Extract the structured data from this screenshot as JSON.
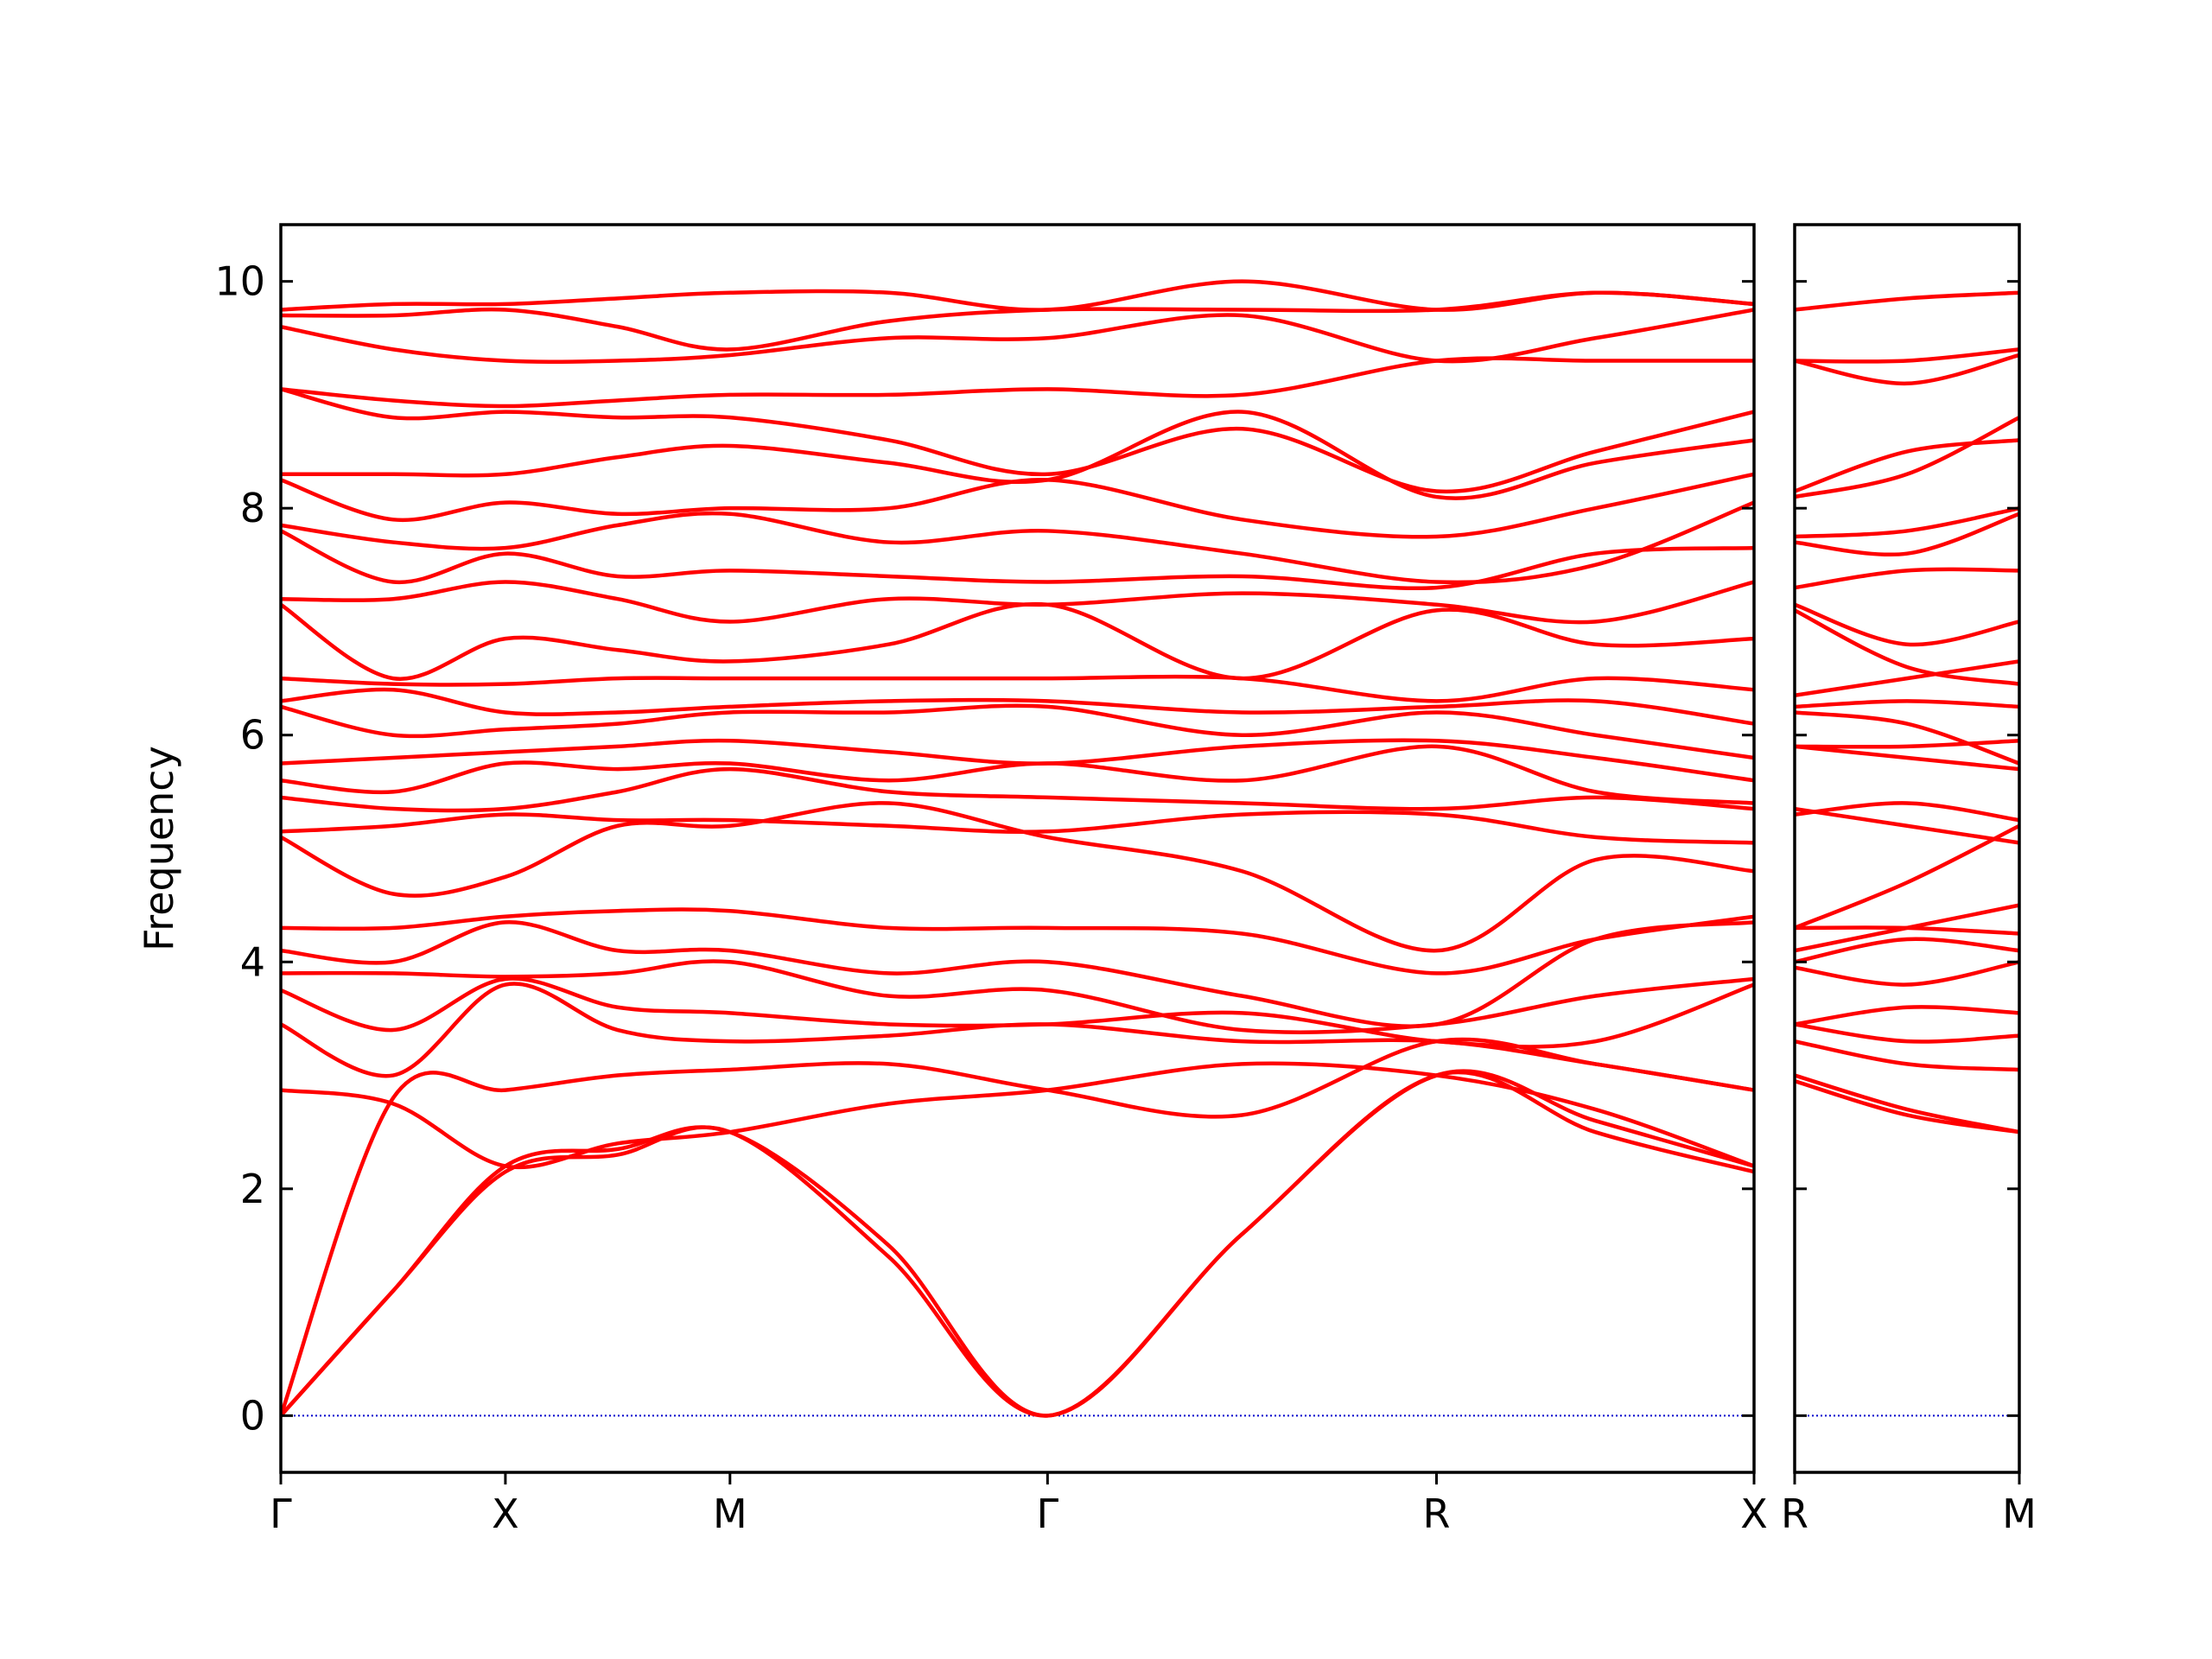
{
  "chart_data": [
    {
      "type": "line",
      "ylabel": "Frequency",
      "color": "#ff0000",
      "zero_line": true,
      "zero_line_color": "#0000cc",
      "x": [
        0,
        0.5,
        1,
        1.5,
        2,
        2.707,
        3.414,
        4.28,
        5.146,
        5.853,
        6.56
      ],
      "xlim": [
        0,
        6.56
      ],
      "xticks": [
        {
          "value": 0,
          "label": "Γ"
        },
        {
          "value": 1,
          "label": "X"
        },
        {
          "value": 2,
          "label": "M"
        },
        {
          "value": 3.414,
          "label": "Γ"
        },
        {
          "value": 5.146,
          "label": "R"
        },
        {
          "value": 6.56,
          "label": "X"
        }
      ],
      "ylim": [
        -0.5,
        10.5
      ],
      "yticks": [
        0,
        2,
        4,
        6,
        8,
        10
      ],
      "series": [
        {
          "values": [
            0,
            1.1,
            2.15,
            2.3,
            2.5,
            1.4,
            0,
            1.6,
            3.0,
            2.5,
            2.15
          ]
        },
        {
          "values": [
            0,
            1.1,
            2.2,
            2.35,
            2.5,
            1.5,
            0,
            1.6,
            3.0,
            2.6,
            2.2
          ]
        },
        {
          "values": [
            0,
            2.8,
            2.87,
            3.0,
            3.05,
            3.1,
            2.87,
            2.65,
            3.3,
            3.1,
            2.87
          ]
        },
        {
          "values": [
            2.87,
            2.75,
            2.2,
            2.4,
            2.5,
            2.75,
            2.87,
            3.1,
            3.0,
            2.7,
            2.2
          ]
        },
        {
          "values": [
            3.45,
            3.0,
            3.8,
            3.4,
            3.3,
            3.35,
            3.45,
            3.3,
            3.3,
            3.1,
            2.87
          ]
        },
        {
          "values": [
            3.75,
            3.4,
            3.85,
            3.6,
            3.55,
            3.45,
            3.45,
            3.55,
            3.3,
            3.3,
            3.8
          ]
        },
        {
          "values": [
            3.9,
            3.9,
            3.87,
            3.9,
            4.0,
            3.7,
            3.75,
            3.4,
            3.45,
            3.7,
            3.85
          ]
        },
        {
          "values": [
            4.1,
            4.0,
            4.35,
            4.1,
            4.1,
            3.9,
            4.0,
            3.7,
            3.45,
            4.2,
            4.35
          ]
        },
        {
          "values": [
            4.3,
            4.3,
            4.4,
            4.45,
            4.45,
            4.3,
            4.3,
            4.25,
            3.9,
            4.2,
            4.4
          ]
        },
        {
          "values": [
            5.1,
            4.6,
            4.75,
            5.2,
            5.2,
            5.4,
            5.1,
            4.8,
            4.1,
            4.9,
            4.8
          ]
        },
        {
          "values": [
            5.15,
            5.2,
            5.3,
            5.25,
            5.25,
            5.2,
            5.15,
            5.3,
            5.3,
            5.1,
            5.05
          ]
        },
        {
          "values": [
            5.45,
            5.35,
            5.35,
            5.5,
            5.7,
            5.5,
            5.45,
            5.4,
            5.35,
            5.45,
            5.35
          ]
        },
        {
          "values": [
            5.6,
            5.5,
            5.75,
            5.7,
            5.75,
            5.6,
            5.75,
            5.6,
            5.9,
            5.5,
            5.4
          ]
        },
        {
          "values": [
            5.75,
            5.8,
            5.85,
            5.9,
            5.95,
            5.85,
            5.75,
            5.9,
            5.95,
            5.8,
            5.6
          ]
        },
        {
          "values": [
            6.25,
            6.0,
            6.05,
            6.1,
            6.2,
            6.2,
            6.25,
            6.0,
            6.2,
            6.0,
            5.8
          ]
        },
        {
          "values": [
            6.3,
            6.4,
            6.2,
            6.2,
            6.25,
            6.3,
            6.3,
            6.2,
            6.25,
            6.3,
            6.1
          ]
        },
        {
          "values": [
            6.5,
            6.45,
            6.45,
            6.5,
            6.5,
            6.5,
            6.5,
            6.5,
            6.3,
            6.5,
            6.4
          ]
        },
        {
          "values": [
            7.15,
            6.5,
            6.85,
            6.75,
            6.65,
            6.8,
            7.15,
            6.5,
            7.1,
            6.8,
            6.85
          ]
        },
        {
          "values": [
            7.2,
            7.2,
            7.35,
            7.2,
            7.0,
            7.2,
            7.15,
            7.25,
            7.15,
            7.0,
            7.35
          ]
        },
        {
          "values": [
            7.8,
            7.35,
            7.6,
            7.4,
            7.45,
            7.4,
            7.35,
            7.4,
            7.3,
            7.6,
            7.65
          ]
        },
        {
          "values": [
            7.85,
            7.7,
            7.65,
            7.85,
            7.95,
            7.7,
            7.8,
            7.6,
            7.35,
            7.5,
            8.05
          ]
        },
        {
          "values": [
            8.25,
            7.9,
            8.05,
            7.95,
            8.0,
            8.0,
            8.25,
            7.9,
            7.75,
            8.0,
            8.3
          ]
        },
        {
          "values": [
            8.3,
            8.3,
            8.3,
            8.45,
            8.55,
            8.4,
            8.25,
            8.85,
            8.1,
            8.4,
            8.6
          ]
        },
        {
          "values": [
            9.05,
            8.8,
            8.85,
            8.8,
            8.8,
            8.6,
            8.3,
            8.7,
            8.15,
            8.5,
            8.85
          ]
        },
        {
          "values": [
            9.05,
            8.95,
            8.9,
            8.95,
            9.0,
            9.0,
            9.05,
            9.0,
            9.3,
            9.3,
            9.3
          ]
        },
        {
          "values": [
            9.6,
            9.4,
            9.3,
            9.3,
            9.35,
            9.5,
            9.5,
            9.7,
            9.3,
            9.5,
            9.75
          ]
        },
        {
          "values": [
            9.7,
            9.7,
            9.75,
            9.6,
            9.4,
            9.65,
            9.75,
            9.75,
            9.75,
            9.9,
            9.8
          ]
        },
        {
          "values": [
            9.75,
            9.8,
            9.8,
            9.85,
            9.9,
            9.9,
            9.75,
            10.0,
            9.75,
            9.9,
            9.8
          ]
        }
      ]
    },
    {
      "type": "line",
      "color": "#ff0000",
      "zero_line": true,
      "zero_line_color": "#0000cc",
      "x": [
        0,
        0.5,
        1
      ],
      "xlim": [
        0,
        1
      ],
      "xticks": [
        {
          "value": 0,
          "label": "R"
        },
        {
          "value": 1,
          "label": "M"
        }
      ],
      "ylim": [
        -0.5,
        10.5
      ],
      "yticks": [
        0,
        2,
        4,
        6,
        8,
        10
      ],
      "series": [
        {
          "values": [
            3.0,
            2.7,
            2.5
          ]
        },
        {
          "values": [
            2.95,
            2.65,
            2.5
          ]
        },
        {
          "values": [
            3.3,
            3.1,
            3.05
          ]
        },
        {
          "values": [
            3.45,
            3.3,
            3.35
          ]
        },
        {
          "values": [
            3.45,
            3.6,
            3.55
          ]
        },
        {
          "values": [
            3.95,
            3.8,
            4.0
          ]
        },
        {
          "values": [
            4.0,
            4.2,
            4.1
          ]
        },
        {
          "values": [
            4.3,
            4.3,
            4.25
          ]
        },
        {
          "values": [
            4.1,
            4.3,
            4.5
          ]
        },
        {
          "values": [
            5.3,
            5.4,
            5.25
          ]
        },
        {
          "values": [
            4.3,
            4.7,
            5.2
          ]
        },
        {
          "values": [
            5.35,
            5.2,
            5.05
          ]
        },
        {
          "values": [
            5.9,
            5.8,
            5.7
          ]
        },
        {
          "values": [
            5.9,
            5.9,
            5.95
          ]
        },
        {
          "values": [
            6.2,
            6.1,
            5.75
          ]
        },
        {
          "values": [
            6.25,
            6.3,
            6.25
          ]
        },
        {
          "values": [
            6.35,
            6.5,
            6.65
          ]
        },
        {
          "values": [
            7.1,
            6.6,
            6.45
          ]
        },
        {
          "values": [
            7.15,
            6.8,
            7.0
          ]
        },
        {
          "values": [
            7.3,
            7.45,
            7.45
          ]
        },
        {
          "values": [
            7.7,
            7.6,
            7.95
          ]
        },
        {
          "values": [
            7.75,
            7.8,
            8.0
          ]
        },
        {
          "values": [
            8.15,
            8.5,
            8.6
          ]
        },
        {
          "values": [
            8.1,
            8.3,
            8.8
          ]
        },
        {
          "values": [
            9.3,
            9.1,
            9.35
          ]
        },
        {
          "values": [
            9.3,
            9.3,
            9.4
          ]
        },
        {
          "values": [
            9.75,
            9.85,
            9.9
          ]
        }
      ]
    }
  ]
}
